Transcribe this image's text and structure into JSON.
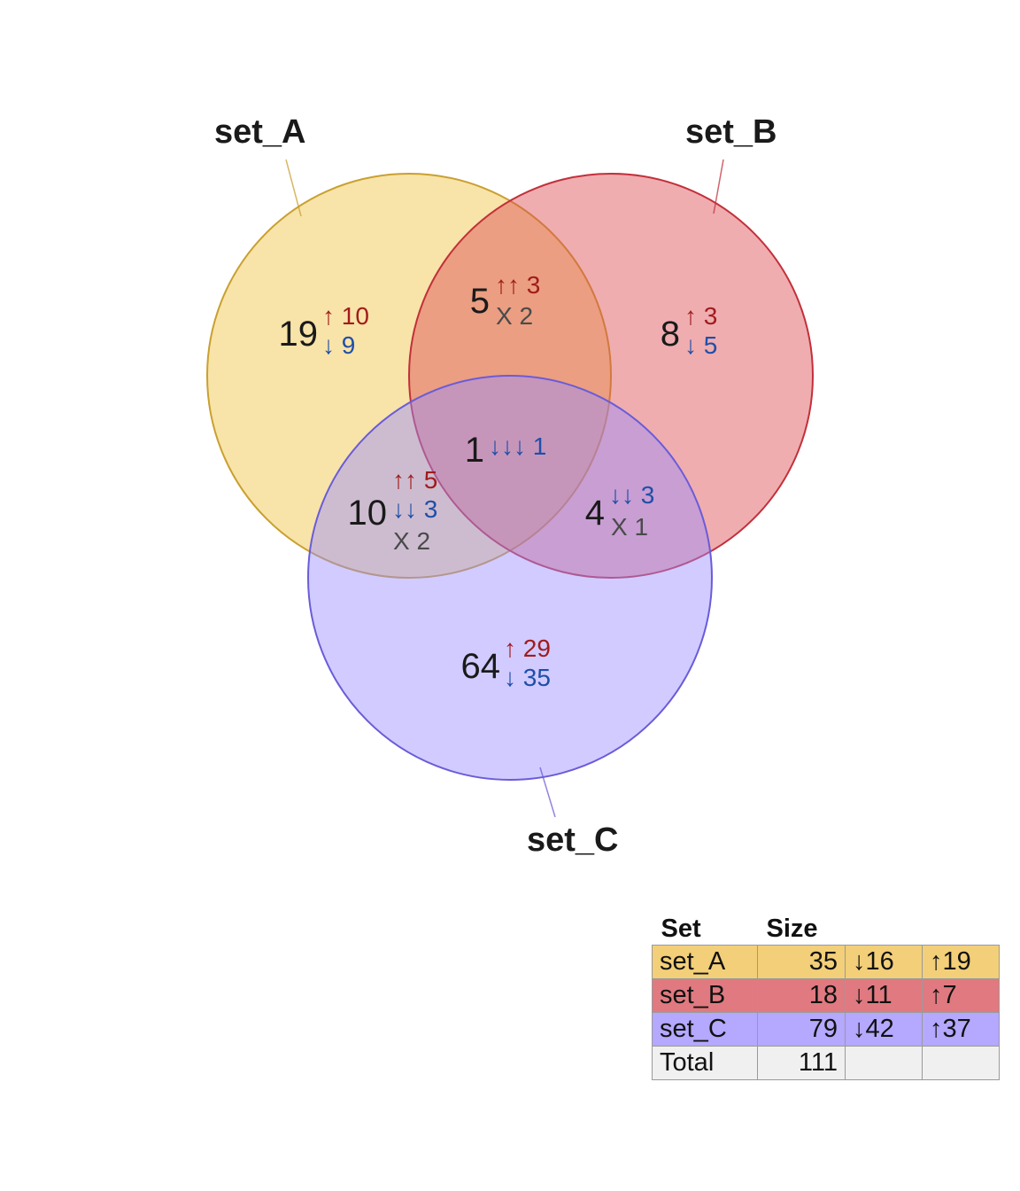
{
  "sets": [
    {
      "id": "set_A",
      "label": "set_A",
      "fill": "#f0c040",
      "stroke": "#c9a030"
    },
    {
      "id": "set_B",
      "label": "set_B",
      "fill": "#dc4a50",
      "stroke": "#c2303a"
    },
    {
      "id": "set_C",
      "label": "set_C",
      "fill": "#9a8cff",
      "stroke": "#6a5cd8"
    }
  ],
  "regions": {
    "A_only": {
      "count": "19",
      "up": "↑ 10",
      "down": "↓ 9"
    },
    "B_only": {
      "count": "8",
      "up": "↑ 3",
      "down": "↓ 5"
    },
    "C_only": {
      "count": "64",
      "up": "↑ 29",
      "down": "↓ 35"
    },
    "AB": {
      "count": "5",
      "up": "↑↑ 3",
      "mixed": "X 2"
    },
    "AC": {
      "count": "10",
      "up": "↑↑ 5",
      "down": "↓↓ 3",
      "mixed": "X 2"
    },
    "BC": {
      "count": "4",
      "down": "↓↓ 3",
      "mixed": "X 1"
    },
    "ABC": {
      "count": "1",
      "down": "↓↓↓ 1"
    }
  },
  "table": {
    "headers": [
      "Set",
      "Size",
      "",
      ""
    ],
    "rows": [
      {
        "set": "set_A",
        "size": "35",
        "down": "↓16",
        "up": "↑19",
        "bg": "#f2cf78"
      },
      {
        "set": "set_B",
        "size": "18",
        "down": "↓11",
        "up": "↑7",
        "bg": "#e07a80"
      },
      {
        "set": "set_C",
        "size": "79",
        "down": "↓42",
        "up": "↑37",
        "bg": "#b4a8ff"
      },
      {
        "set": "Total",
        "size": "111",
        "down": "",
        "up": "",
        "bg": "#f0f0f0"
      }
    ]
  }
}
